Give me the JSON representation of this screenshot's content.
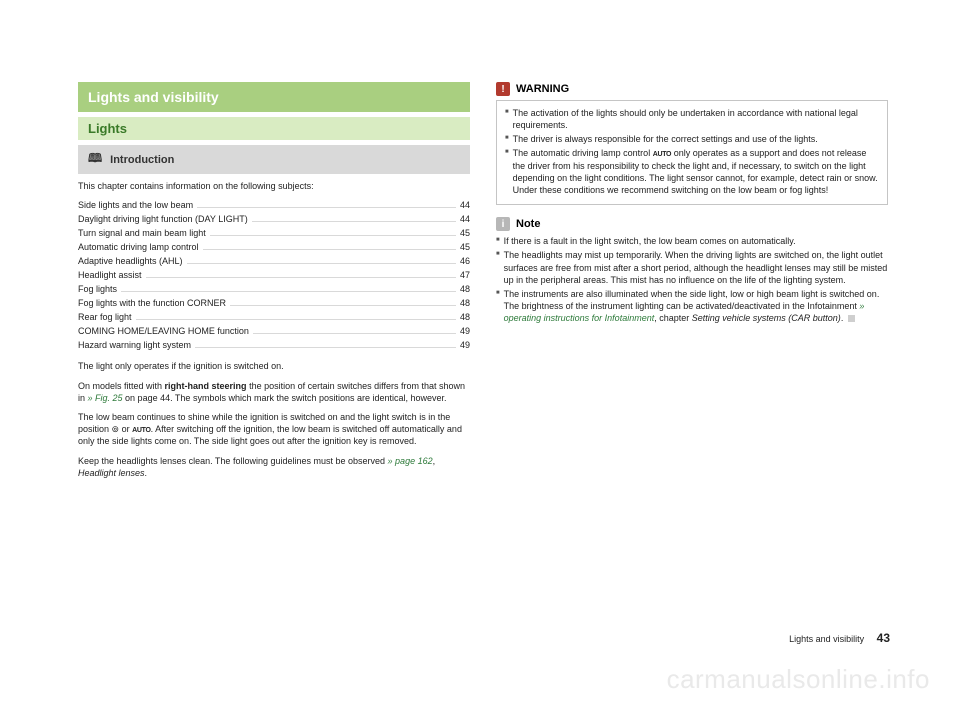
{
  "colors": {
    "chapter_bg": "#a9cf80",
    "section_bg": "#d9ecc2",
    "section_text": "#3a7a28",
    "subsection_bg": "#d9d9d9",
    "warning_icon_bg": "#b23a2e",
    "note_icon_bg": "#b7b7b7",
    "link_green": "#2d7a3a"
  },
  "left": {
    "chapter": "Lights and visibility",
    "section": "Lights",
    "subsection": "Introduction",
    "intro": "This chapter contains information on the following subjects:",
    "toc": [
      {
        "label": "Side lights and the low beam",
        "page": "44"
      },
      {
        "label": "Daylight driving light function (DAY LIGHT)",
        "page": "44"
      },
      {
        "label": "Turn signal and main beam light",
        "page": "45"
      },
      {
        "label": "Automatic driving lamp control",
        "page": "45"
      },
      {
        "label": "Adaptive headlights (AHL)",
        "page": "46"
      },
      {
        "label": "Headlight assist",
        "page": "47"
      },
      {
        "label": "Fog lights",
        "page": "48"
      },
      {
        "label": "Fog lights with the function CORNER",
        "page": "48"
      },
      {
        "label": "Rear fog light",
        "page": "48"
      },
      {
        "label": "COMING HOME/LEAVING HOME function",
        "page": "49"
      },
      {
        "label": "Hazard warning light system",
        "page": "49"
      }
    ],
    "p1": "The light only operates if the ignition is switched on.",
    "p2_a": "On models fitted with ",
    "p2_bold": "right-hand steering",
    "p2_b": " the position of certain switches differs from that shown in ",
    "p2_link": "» Fig. 25",
    "p2_c": " on page 44. The symbols which mark the switch positions are identical, however.",
    "p3_a": "The low beam continues to shine while the ignition is switched on and the light switch is in the position ",
    "p3_sym1": "⊚",
    "p3_b": " or ",
    "p3_sym2": "AUTO",
    "p3_c": ". After switching off the ignition, the low beam is switched off automatically and only the side lights come on. The side light goes out after the ignition key is removed.",
    "p4_a": "Keep the headlights lenses clean. The following guidelines must be observed ",
    "p4_link": "» page 162",
    "p4_b": ", ",
    "p4_ital": "Headlight lenses",
    "p4_c": "."
  },
  "right": {
    "warning_label": "WARNING",
    "warning_icon": "!",
    "warning_items": [
      "The activation of the lights should only be undertaken in accordance with national legal requirements.",
      "The driver is always responsible for the correct settings and use of the lights.",
      "The automatic driving lamp control AUTO only operates as a support and does not release the driver from his responsibility to check the light and, if necessary, to switch on the light depending on the light conditions. The light sensor cannot, for example, detect rain or snow. Under these conditions we recommend switching on the low beam or fog lights!"
    ],
    "note_label": "Note",
    "note_icon": "i",
    "note_items": [
      {
        "text": "If there is a fault in the light switch, the low beam comes on automatically."
      },
      {
        "text": "The headlights may mist up temporarily. When the driving lights are switched on, the light outlet surfaces are free from mist after a short period, although the headlight lenses may still be misted up in the peripheral areas. This mist has no influence on the life of the lighting system."
      },
      {
        "text_a": "The instruments are also illuminated when the side light, low or high beam light is switched on. The brightness of the instrument lighting can be activated/deactivated in the Infotainment ",
        "link": "» operating instructions for Infotainment",
        "text_b": ", chapter ",
        "ital": "Setting vehicle systems (CAR button)",
        "text_c": "."
      }
    ]
  },
  "footer": {
    "label": "Lights and visibility",
    "page": "43"
  },
  "watermark": "carmanualsonline.info"
}
